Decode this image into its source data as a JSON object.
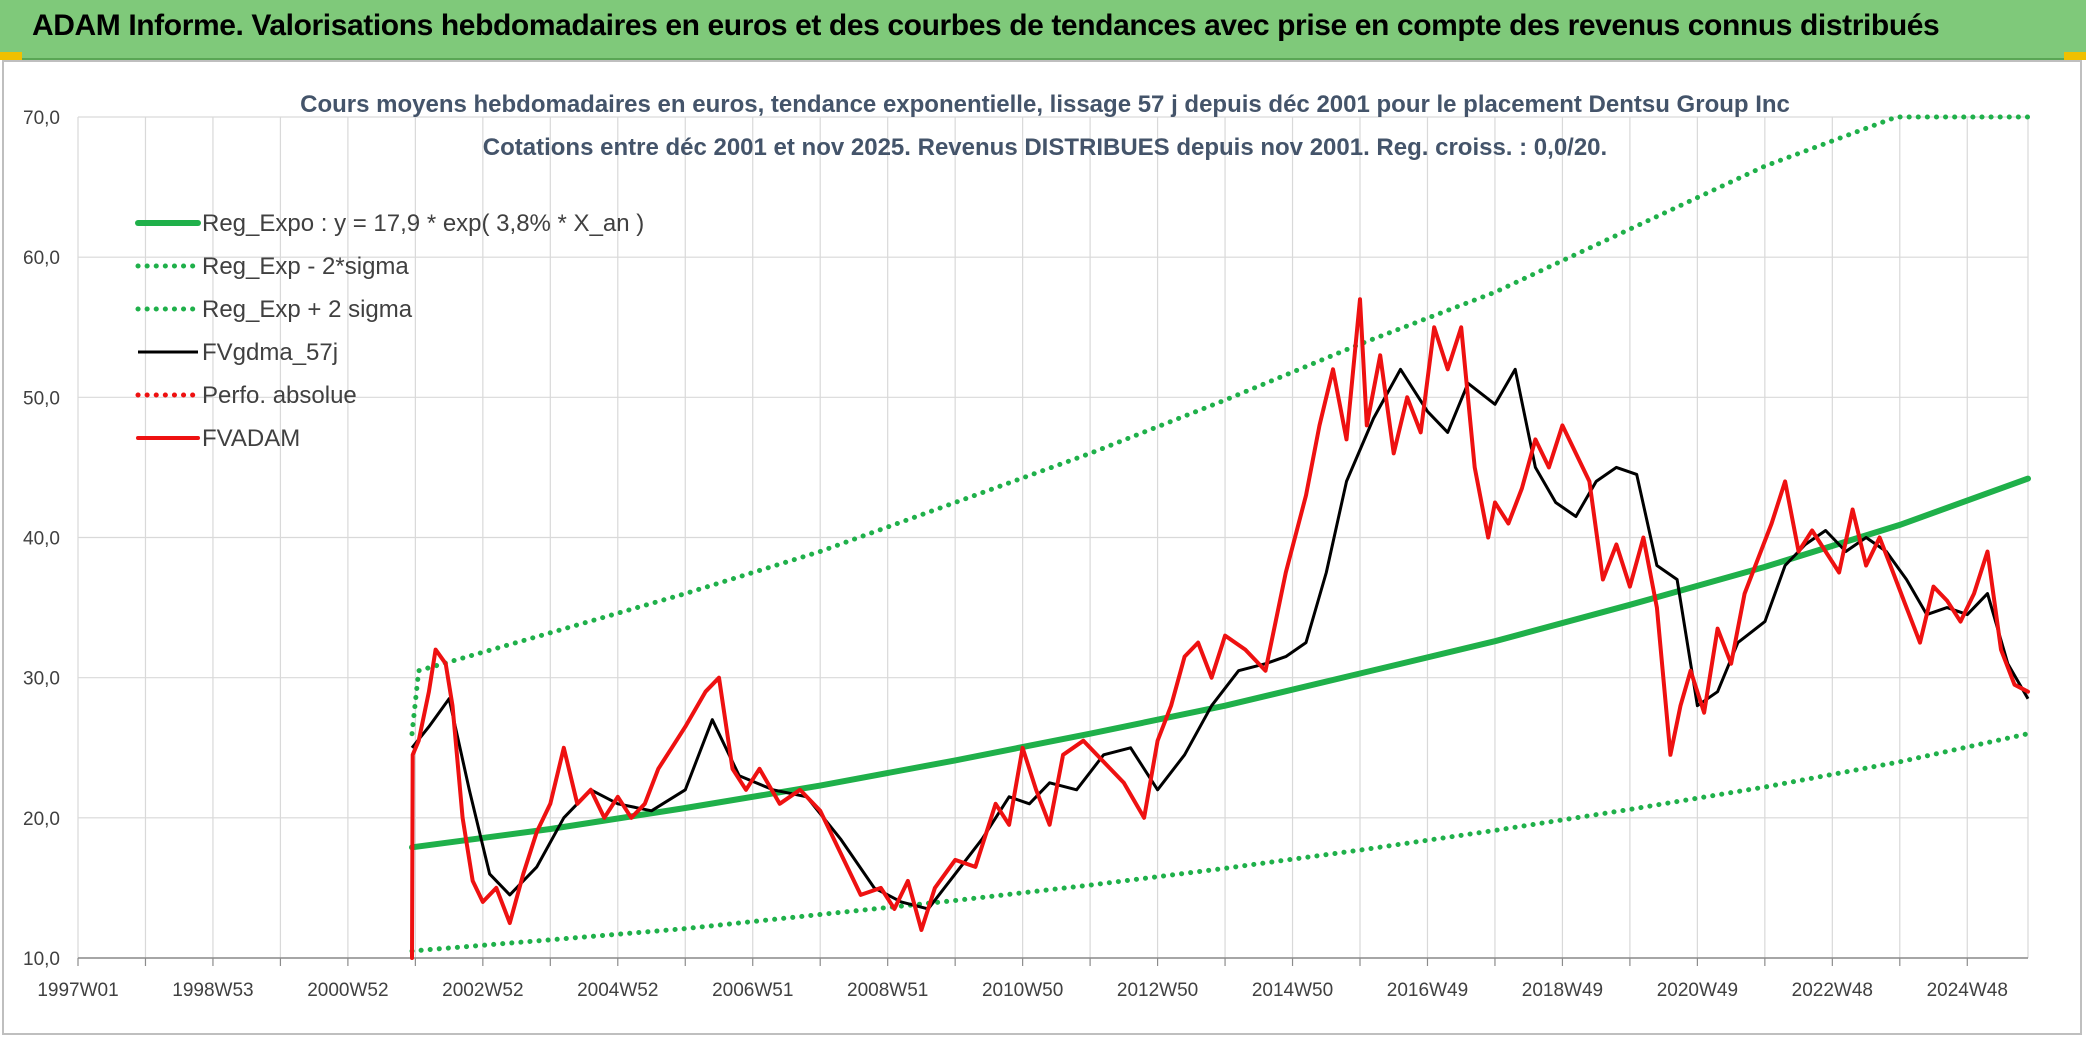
{
  "header": {
    "title": "ADAM Informe. Valorisations hebdomadaires en euros et des courbes de tendances avec prise en compte des revenus connus distribués"
  },
  "colors": {
    "header_bg": "#7fc97a",
    "green": "#1fb04a",
    "red": "#ee1111",
    "black": "#000000",
    "grid": "#d9d9d9"
  },
  "chart_data": {
    "type": "line",
    "title": "Cours moyens hebdomadaires en euros, tendance exponentielle, lissage 57 j depuis déc 2001 pour le placement Dentsu Group Inc",
    "subtitle": "Cotations entre déc 2001 et nov 2025. Revenus DISTRIBUES depuis nov 2001. Reg. croiss. : 0,0/20.",
    "xlabel": "",
    "ylabel": "",
    "x_range": [
      1997.0,
      2025.9
    ],
    "ylim": [
      10,
      70
    ],
    "y_ticks": [
      "10,0",
      "20,0",
      "30,0",
      "40,0",
      "50,0",
      "60,0",
      "70,0"
    ],
    "x_ticks": [
      {
        "label": "1997W01",
        "x": 1997.0
      },
      {
        "label": "1998W53",
        "x": 1999.0
      },
      {
        "label": "2000W52",
        "x": 2001.0
      },
      {
        "label": "2002W52",
        "x": 2003.0
      },
      {
        "label": "2004W52",
        "x": 2005.0
      },
      {
        "label": "2006W51",
        "x": 2007.0
      },
      {
        "label": "2008W51",
        "x": 2009.0
      },
      {
        "label": "2010W50",
        "x": 2011.0
      },
      {
        "label": "2012W50",
        "x": 2013.0
      },
      {
        "label": "2014W50",
        "x": 2015.0
      },
      {
        "label": "2016W49",
        "x": 2017.0
      },
      {
        "label": "2018W49",
        "x": 2019.0
      },
      {
        "label": "2020W49",
        "x": 2021.0
      },
      {
        "label": "2022W48",
        "x": 2023.0
      },
      {
        "label": "2024W48",
        "x": 2025.0
      }
    ],
    "grid": true,
    "legend_position": "top-left",
    "series": [
      {
        "name": "Reg_Expo : y = 17,9 * exp( 3,8% *  X_an )",
        "style": "solid-thick",
        "color": "#1fb04a",
        "x": [
          2001.95,
          2004,
          2006,
          2008,
          2010,
          2012,
          2014,
          2016,
          2018,
          2020,
          2022,
          2024,
          2025.9
        ],
        "y": [
          17.9,
          19.2,
          20.7,
          22.3,
          24.1,
          26.0,
          28.0,
          30.3,
          32.6,
          35.2,
          37.9,
          40.9,
          44.2
        ]
      },
      {
        "name": "Reg_Exp - 2*sigma",
        "style": "dotted",
        "color": "#1fb04a",
        "x": [
          2001.95,
          2004,
          2006,
          2008,
          2010,
          2012,
          2014,
          2016,
          2018,
          2020,
          2022,
          2024,
          2025.9
        ],
        "y": [
          10.5,
          11.3,
          12.1,
          13.1,
          14.1,
          15.2,
          16.4,
          17.7,
          19.1,
          20.6,
          22.2,
          24.0,
          26.0
        ]
      },
      {
        "name": "Reg_Exp + 2 sigma",
        "style": "dotted",
        "color": "#1fb04a",
        "x": [
          2001.95,
          2002.05,
          2004,
          2006,
          2008,
          2010,
          2012,
          2014,
          2016,
          2018,
          2020,
          2022,
          2023.95,
          2025.9
        ],
        "y": [
          26.0,
          30.5,
          33.2,
          36.0,
          39.0,
          42.5,
          46.0,
          49.8,
          53.8,
          57.5,
          62.0,
          66.5,
          70.0,
          70.0
        ]
      },
      {
        "name": "FVgdma_57j",
        "style": "solid",
        "color": "#000000",
        "x": [
          2001.95,
          2002.2,
          2002.5,
          2002.8,
          2003.1,
          2003.4,
          2003.8,
          2004.2,
          2004.6,
          2005.0,
          2005.5,
          2006.0,
          2006.4,
          2006.8,
          2007.3,
          2007.8,
          2008.3,
          2008.8,
          2009.2,
          2009.6,
          2010.0,
          2010.4,
          2010.8,
          2011.1,
          2011.4,
          2011.8,
          2012.2,
          2012.6,
          2013.0,
          2013.4,
          2013.8,
          2014.2,
          2014.6,
          2014.9,
          2015.2,
          2015.5,
          2015.8,
          2016.2,
          2016.6,
          2017.0,
          2017.3,
          2017.6,
          2018.0,
          2018.3,
          2018.6,
          2018.9,
          2019.2,
          2019.5,
          2019.8,
          2020.1,
          2020.4,
          2020.7,
          2021.0,
          2021.3,
          2021.6,
          2022.0,
          2022.3,
          2022.6,
          2022.9,
          2023.2,
          2023.5,
          2023.8,
          2024.1,
          2024.4,
          2024.7,
          2025.0,
          2025.3,
          2025.6,
          2025.9
        ],
        "y": [
          25.0,
          26.5,
          28.5,
          22.0,
          16.0,
          14.5,
          16.5,
          20.0,
          22.0,
          21.0,
          20.5,
          22.0,
          27.0,
          23.0,
          22.0,
          21.5,
          18.5,
          15.0,
          14.0,
          13.5,
          16.0,
          18.5,
          21.5,
          21.0,
          22.5,
          22.0,
          24.5,
          25.0,
          22.0,
          24.5,
          28.0,
          30.5,
          31.0,
          31.5,
          32.5,
          37.5,
          44.0,
          48.5,
          52.0,
          49.0,
          47.5,
          51.0,
          49.5,
          52.0,
          45.0,
          42.5,
          41.5,
          44.0,
          45.0,
          44.5,
          38.0,
          37.0,
          28.0,
          29.0,
          32.5,
          34.0,
          38.0,
          39.5,
          40.5,
          39.0,
          40.0,
          39.0,
          37.0,
          34.5,
          35.0,
          34.5,
          36.0,
          31.0,
          28.5
        ]
      },
      {
        "name": "Perfo. absolue",
        "style": "dotted",
        "color": "#ee1111",
        "x": [],
        "y": []
      },
      {
        "name": "FVADAM",
        "style": "solid-thick",
        "color": "#ee1111",
        "x": [
          2001.95,
          2001.96,
          2002.05,
          2002.2,
          2002.3,
          2002.45,
          2002.55,
          2002.7,
          2002.85,
          2003.0,
          2003.2,
          2003.4,
          2003.6,
          2003.8,
          2004.0,
          2004.2,
          2004.4,
          2004.6,
          2004.8,
          2005.0,
          2005.2,
          2005.4,
          2005.6,
          2005.8,
          2006.0,
          2006.3,
          2006.5,
          2006.7,
          2006.9,
          2007.1,
          2007.4,
          2007.7,
          2008.0,
          2008.3,
          2008.6,
          2008.9,
          2009.1,
          2009.3,
          2009.5,
          2009.7,
          2010.0,
          2010.3,
          2010.6,
          2010.8,
          2011.0,
          2011.2,
          2011.4,
          2011.6,
          2011.9,
          2012.2,
          2012.5,
          2012.8,
          2013.0,
          2013.2,
          2013.4,
          2013.6,
          2013.8,
          2014.0,
          2014.3,
          2014.6,
          2014.9,
          2015.2,
          2015.4,
          2015.6,
          2015.8,
          2016.0,
          2016.1,
          2016.3,
          2016.5,
          2016.7,
          2016.9,
          2017.1,
          2017.3,
          2017.5,
          2017.7,
          2017.9,
          2018.0,
          2018.2,
          2018.4,
          2018.6,
          2018.8,
          2019.0,
          2019.2,
          2019.4,
          2019.6,
          2019.8,
          2020.0,
          2020.2,
          2020.4,
          2020.6,
          2020.75,
          2020.9,
          2021.1,
          2021.3,
          2021.5,
          2021.7,
          2021.9,
          2022.1,
          2022.3,
          2022.5,
          2022.7,
          2022.9,
          2023.1,
          2023.3,
          2023.5,
          2023.7,
          2023.9,
          2024.1,
          2024.3,
          2024.5,
          2024.7,
          2024.9,
          2025.1,
          2025.3,
          2025.5,
          2025.7,
          2025.9
        ],
        "y": [
          10.0,
          24.5,
          25.5,
          29.0,
          32.0,
          31.0,
          28.0,
          20.0,
          15.5,
          14.0,
          15.0,
          12.5,
          16.0,
          19.0,
          21.0,
          25.0,
          21.0,
          22.0,
          20.0,
          21.5,
          20.0,
          21.0,
          23.5,
          25.0,
          26.5,
          29.0,
          30.0,
          23.5,
          22.0,
          23.5,
          21.0,
          22.0,
          20.5,
          17.5,
          14.5,
          15.0,
          13.5,
          15.5,
          12.0,
          15.0,
          17.0,
          16.5,
          21.0,
          19.5,
          25.0,
          22.0,
          19.5,
          24.5,
          25.5,
          24.0,
          22.5,
          20.0,
          25.5,
          28.0,
          31.5,
          32.5,
          30.0,
          33.0,
          32.0,
          30.5,
          37.5,
          43.0,
          48.0,
          52.0,
          47.0,
          57.0,
          48.0,
          53.0,
          46.0,
          50.0,
          47.5,
          55.0,
          52.0,
          55.0,
          45.0,
          40.0,
          42.5,
          41.0,
          43.5,
          47.0,
          45.0,
          48.0,
          46.0,
          44.0,
          37.0,
          39.5,
          36.5,
          40.0,
          35.0,
          24.5,
          28.0,
          30.5,
          27.5,
          33.5,
          31.0,
          36.0,
          38.5,
          41.0,
          44.0,
          39.0,
          40.5,
          39.0,
          37.5,
          42.0,
          38.0,
          40.0,
          37.5,
          35.0,
          32.5,
          36.5,
          35.5,
          34.0,
          36.0,
          39.0,
          32.0,
          29.5,
          29.0
        ]
      }
    ]
  }
}
